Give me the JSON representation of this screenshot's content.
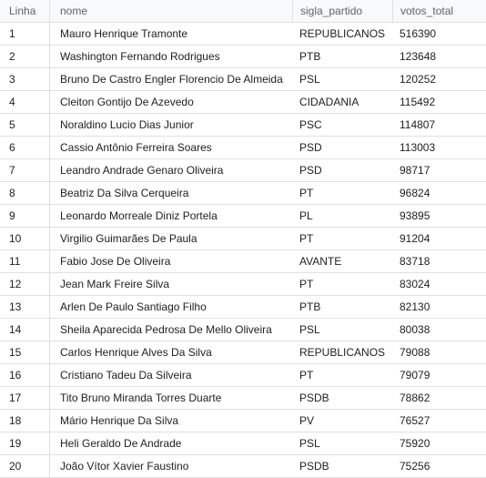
{
  "table": {
    "columns": [
      "Linha",
      "nome",
      "sigla_partido",
      "votos_total"
    ],
    "rows": [
      [
        "1",
        "Mauro Henrique Tramonte",
        "REPUBLICANOS",
        "516390"
      ],
      [
        "2",
        "Washington Fernando Rodrigues",
        "PTB",
        "123648"
      ],
      [
        "3",
        "Bruno De Castro Engler Florencio De Almeida",
        "PSL",
        "120252"
      ],
      [
        "4",
        "Cleiton Gontijo De Azevedo",
        "CIDADANIA",
        "115492"
      ],
      [
        "5",
        "Noraldino Lucio Dias Junior",
        "PSC",
        "114807"
      ],
      [
        "6",
        "Cassio Antônio Ferreira Soares",
        "PSD",
        "113003"
      ],
      [
        "7",
        "Leandro Andrade Genaro Oliveira",
        "PSD",
        "98717"
      ],
      [
        "8",
        "Beatriz Da Silva Cerqueira",
        "PT",
        "96824"
      ],
      [
        "9",
        "Leonardo Morreale Diniz Portela",
        "PL",
        "93895"
      ],
      [
        "10",
        "Virgilio Guimarães De Paula",
        "PT",
        "91204"
      ],
      [
        "11",
        "Fabio Jose De Oliveira",
        "AVANTE",
        "83718"
      ],
      [
        "12",
        "Jean Mark Freire Silva",
        "PT",
        "83024"
      ],
      [
        "13",
        "Arlen De Paulo Santiago Filho",
        "PTB",
        "82130"
      ],
      [
        "14",
        "Sheila Aparecida Pedrosa De Mello Oliveira",
        "PSL",
        "80038"
      ],
      [
        "15",
        "Carlos Henrique Alves Da Silva",
        "REPUBLICANOS",
        "79088"
      ],
      [
        "16",
        "Cristiano Tadeu Da Silveira",
        "PT",
        "79079"
      ],
      [
        "17",
        "Tito Bruno Miranda Torres Duarte",
        "PSDB",
        "78862"
      ],
      [
        "18",
        "Mário Henrique Da Silva",
        "PV",
        "76527"
      ],
      [
        "19",
        "Heli Geraldo De Andrade",
        "PSL",
        "75920"
      ],
      [
        "20",
        "João Vítor Xavier Faustino",
        "PSDB",
        "75256"
      ]
    ]
  }
}
